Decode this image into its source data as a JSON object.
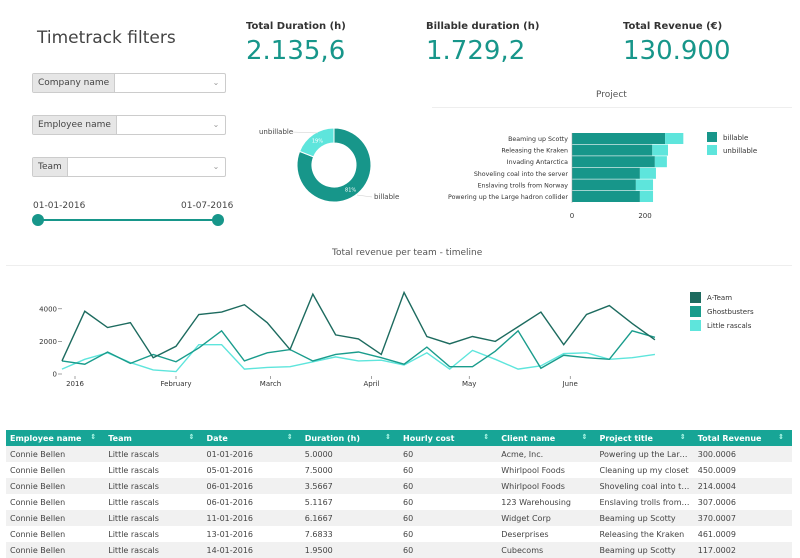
{
  "filters": {
    "title": "Timetrack filters",
    "dropdowns": [
      {
        "label": "Company name",
        "value": ""
      },
      {
        "label": "Employee name",
        "value": ""
      },
      {
        "label": "Team",
        "value": ""
      }
    ],
    "date_range": {
      "start": "01-01-2016",
      "end": "01-07-2016"
    }
  },
  "kpis": [
    {
      "label": "Total Duration (h)",
      "value": "2.135,6"
    },
    {
      "label": "Billable duration (h)",
      "value": "1.729,2"
    },
    {
      "label": "Total Revenue (€)",
      "value": "130.900"
    }
  ],
  "colors": {
    "accent": "#17a596",
    "billable": "#17968a",
    "unbillable": "#5ee5dc",
    "a_team": "#1d6b5f",
    "ghostbusters": "#1a9c8c",
    "little_rascals": "#5ee5dc"
  },
  "chart_data": [
    {
      "type": "pie",
      "donut": true,
      "labels": [
        "billable",
        "unbillable"
      ],
      "values": [
        81,
        19
      ],
      "slice_labels": [
        "81%",
        "19%"
      ]
    },
    {
      "type": "bar",
      "orientation": "horizontal",
      "stacked": true,
      "title": "Project",
      "categories": [
        "Beaming up Scotty",
        "Releasing the Kraken",
        "Invading Antarctica",
        "Shoveling coal into the server",
        "Enslaving trolls from Norway",
        "Powering up the Large hadron collider"
      ],
      "series": [
        {
          "name": "billable",
          "values": [
            255,
            220,
            227,
            186,
            175,
            186
          ]
        },
        {
          "name": "unbillable",
          "values": [
            50,
            43,
            33,
            44,
            47,
            36
          ]
        }
      ],
      "xticks": [
        0,
        200
      ],
      "legend": "right"
    },
    {
      "type": "line",
      "title": "Total revenue per team - timeline",
      "x": [
        "2015-12-28",
        "2016-01-04",
        "2016-01-11",
        "2016-01-18",
        "2016-01-25",
        "2016-02-01",
        "2016-02-08",
        "2016-02-15",
        "2016-02-22",
        "2016-02-29",
        "2016-03-07",
        "2016-03-14",
        "2016-03-21",
        "2016-03-28",
        "2016-04-04",
        "2016-04-11",
        "2016-04-18",
        "2016-04-25",
        "2016-05-02",
        "2016-05-09",
        "2016-05-16",
        "2016-05-23",
        "2016-05-30",
        "2016-06-06",
        "2016-06-13",
        "2016-06-20",
        "2016-06-27"
      ],
      "xtick_labels": [
        "2016",
        "February",
        "March",
        "April",
        "May",
        "June"
      ],
      "yticks": [
        0,
        2000,
        4000
      ],
      "ylim": [
        0,
        5200
      ],
      "legend": "right",
      "series": [
        {
          "name": "A-Team",
          "values": [
            800,
            3850,
            2850,
            3150,
            1000,
            1700,
            3650,
            3800,
            4250,
            3150,
            1500,
            4900,
            2400,
            2150,
            1200,
            5000,
            2300,
            1850,
            2300,
            2000,
            2900,
            3800,
            1800,
            3650,
            4200,
            3100,
            2100
          ]
        },
        {
          "name": "Ghostbusters",
          "values": [
            800,
            600,
            1350,
            650,
            1200,
            750,
            1600,
            2650,
            800,
            1300,
            1500,
            800,
            1200,
            1350,
            1000,
            600,
            1650,
            450,
            450,
            1400,
            2650,
            350,
            1150,
            1000,
            900,
            2650,
            2250
          ]
        },
        {
          "name": "Little rascals",
          "values": [
            300,
            900,
            1300,
            700,
            250,
            150,
            1800,
            1800,
            300,
            400,
            450,
            750,
            1050,
            800,
            850,
            550,
            1300,
            300,
            1450,
            900,
            300,
            500,
            1250,
            1300,
            900,
            1000,
            1200
          ]
        }
      ]
    }
  ],
  "table": {
    "columns": [
      "Employee name",
      "Team",
      "Date",
      "Duration (h)",
      "Hourly cost",
      "Client name",
      "Project title",
      "Total Revenue"
    ],
    "rows": [
      [
        "Connie Bellen",
        "Little rascals",
        "01-01-2016",
        "5.0000",
        "60",
        "Acme, Inc.",
        "Powering up the Large ...",
        "300.0006"
      ],
      [
        "Connie Bellen",
        "Little rascals",
        "05-01-2016",
        "7.5000",
        "60",
        "Whirlpool Foods",
        "Cleaning up my closet",
        "450.0009"
      ],
      [
        "Connie Bellen",
        "Little rascals",
        "06-01-2016",
        "3.5667",
        "60",
        "Whirlpool Foods",
        "Shoveling coal into the ...",
        "214.0004"
      ],
      [
        "Connie Bellen",
        "Little rascals",
        "06-01-2016",
        "5.1167",
        "60",
        "123 Warehousing",
        "Enslaving trolls from N...",
        "307.0006"
      ],
      [
        "Connie Bellen",
        "Little rascals",
        "11-01-2016",
        "6.1667",
        "60",
        "Widget Corp",
        "Beaming up Scotty",
        "370.0007"
      ],
      [
        "Connie Bellen",
        "Little rascals",
        "13-01-2016",
        "7.6833",
        "60",
        "Deserprises",
        "Releasing the Kraken",
        "461.0009"
      ],
      [
        "Connie Bellen",
        "Little rascals",
        "14-01-2016",
        "1.9500",
        "60",
        "Cubecoms",
        "Beaming up Scotty",
        "117.0002"
      ]
    ]
  }
}
